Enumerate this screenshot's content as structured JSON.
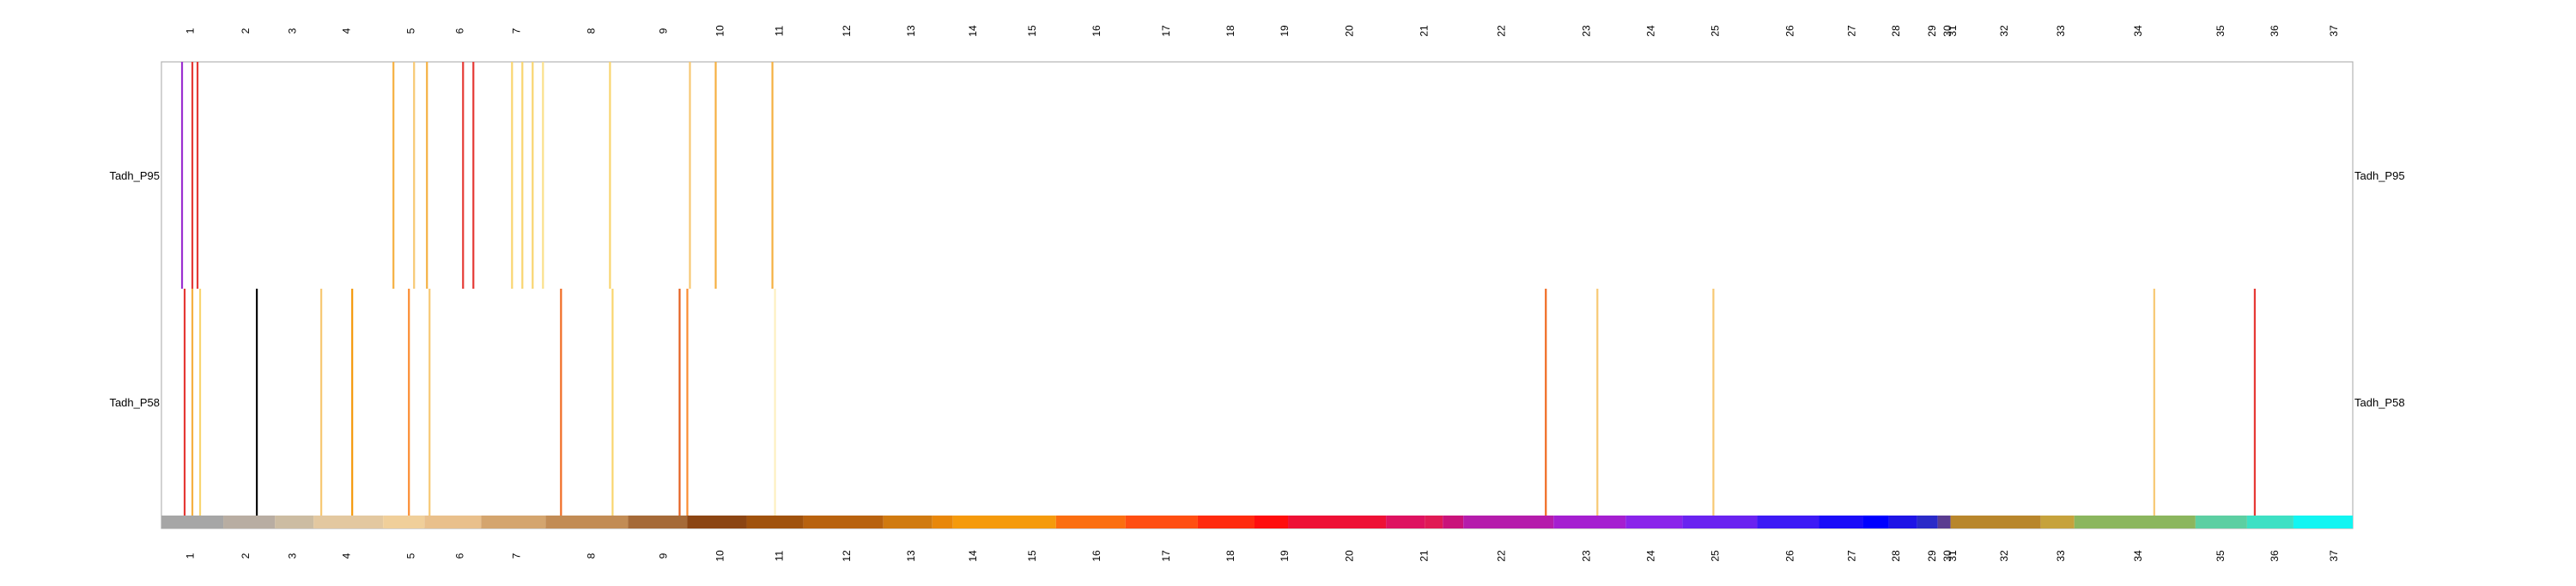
{
  "chart_data": {
    "type": "heatmap",
    "title": "",
    "xlabel": "",
    "ylabel": "",
    "segment_labels": [
      "1",
      "2",
      "3",
      "4",
      "5",
      "6",
      "7",
      "8",
      "9",
      "10",
      "11",
      "12",
      "13",
      "14",
      "15",
      "16",
      "17",
      "18",
      "19",
      "20",
      "21",
      "22",
      "23",
      "24",
      "25",
      "26",
      "27",
      "28",
      "29",
      "30",
      "31",
      "32",
      "33",
      "34",
      "35",
      "36",
      "37"
    ],
    "segment_centers": [
      1.15,
      3.3,
      5.1,
      7.2,
      9.7,
      11.6,
      13.8,
      16.7,
      19.5,
      21.7,
      24.0,
      26.6,
      29.1,
      31.5,
      33.8,
      36.3,
      39.0,
      41.5,
      43.6,
      46.1,
      49.0,
      52.0,
      55.3,
      57.8,
      60.3,
      63.2,
      65.6,
      67.3,
      68.7,
      69.3,
      69.5,
      71.5,
      73.7,
      76.7,
      79.9,
      82.0,
      84.3
    ],
    "segment_bar": [
      {
        "start": 0.0,
        "end": 2.4,
        "color": "#a6a6a6"
      },
      {
        "start": 2.4,
        "end": 4.4,
        "color": "#b8ada2"
      },
      {
        "start": 4.4,
        "end": 5.9,
        "color": "#ccbca2"
      },
      {
        "start": 5.9,
        "end": 8.6,
        "color": "#e3c8a0"
      },
      {
        "start": 8.6,
        "end": 10.2,
        "color": "#f0cf9a"
      },
      {
        "start": 10.2,
        "end": 12.4,
        "color": "#e9c08c"
      },
      {
        "start": 12.4,
        "end": 14.9,
        "color": "#d4a56e"
      },
      {
        "start": 14.9,
        "end": 18.1,
        "color": "#c28c55"
      },
      {
        "start": 18.1,
        "end": 20.4,
        "color": "#a56a38"
      },
      {
        "start": 20.4,
        "end": 22.7,
        "color": "#8b4513"
      },
      {
        "start": 22.7,
        "end": 24.9,
        "color": "#a0520d"
      },
      {
        "start": 24.9,
        "end": 28.0,
        "color": "#b8620f"
      },
      {
        "start": 28.0,
        "end": 29.9,
        "color": "#d07a10"
      },
      {
        "start": 29.9,
        "end": 30.7,
        "color": "#e8870a"
      },
      {
        "start": 30.7,
        "end": 34.7,
        "color": "#f59a0c"
      },
      {
        "start": 34.7,
        "end": 37.4,
        "color": "#fb6e10"
      },
      {
        "start": 37.4,
        "end": 40.2,
        "color": "#ff4e12"
      },
      {
        "start": 40.2,
        "end": 42.4,
        "color": "#ff2a0e"
      },
      {
        "start": 42.4,
        "end": 43.7,
        "color": "#ff0d0d"
      },
      {
        "start": 43.7,
        "end": 47.5,
        "color": "#ee1035"
      },
      {
        "start": 47.5,
        "end": 49.0,
        "color": "#de1260"
      },
      {
        "start": 49.0,
        "end": 49.7,
        "color": "#e01a55"
      },
      {
        "start": 49.7,
        "end": 50.5,
        "color": "#c9137a"
      },
      {
        "start": 50.5,
        "end": 54.0,
        "color": "#b51cab"
      },
      {
        "start": 54.0,
        "end": 56.8,
        "color": "#a51fd0"
      },
      {
        "start": 56.8,
        "end": 59.0,
        "color": "#8a24ea"
      },
      {
        "start": 59.0,
        "end": 61.9,
        "color": "#6a23f0"
      },
      {
        "start": 61.9,
        "end": 64.3,
        "color": "#3d1af5"
      },
      {
        "start": 64.3,
        "end": 66.0,
        "color": "#1a0cf8"
      },
      {
        "start": 66.0,
        "end": 67.0,
        "color": "#0000ff"
      },
      {
        "start": 67.0,
        "end": 68.1,
        "color": "#1e14e6"
      },
      {
        "start": 68.1,
        "end": 68.9,
        "color": "#2a2ac8"
      },
      {
        "start": 68.9,
        "end": 69.4,
        "color": "#5a3c90"
      },
      {
        "start": 69.4,
        "end": 72.9,
        "color": "#b8862c"
      },
      {
        "start": 72.9,
        "end": 74.2,
        "color": "#c6a23c"
      },
      {
        "start": 74.2,
        "end": 78.9,
        "color": "#8bb65e"
      },
      {
        "start": 78.9,
        "end": 80.9,
        "color": "#5ccfa2"
      },
      {
        "start": 80.9,
        "end": 82.7,
        "color": "#3ee0c4"
      },
      {
        "start": 82.7,
        "end": 85.0,
        "color": "#12f5f2"
      }
    ],
    "xlim": [
      0,
      85
    ],
    "rows": [
      {
        "name": "Tadh_P95",
        "marks": [
          {
            "x": 0.8,
            "color": "#9b30d0"
          },
          {
            "x": 1.2,
            "color": "#e53935"
          },
          {
            "x": 1.4,
            "color": "#e53935"
          },
          {
            "x": 9.0,
            "color": "#f5b041"
          },
          {
            "x": 9.8,
            "color": "#f7c873"
          },
          {
            "x": 10.3,
            "color": "#f5b041"
          },
          {
            "x": 11.7,
            "color": "#e53935"
          },
          {
            "x": 12.1,
            "color": "#e53935"
          },
          {
            "x": 13.6,
            "color": "#f9d56e"
          },
          {
            "x": 14.0,
            "color": "#f9d56e"
          },
          {
            "x": 14.4,
            "color": "#f9d56e"
          },
          {
            "x": 14.8,
            "color": "#fbe08a"
          },
          {
            "x": 17.4,
            "color": "#f9d56e"
          },
          {
            "x": 20.5,
            "color": "#f7c873"
          },
          {
            "x": 21.5,
            "color": "#f5b041"
          },
          {
            "x": 23.7,
            "color": "#f5b041"
          }
        ]
      },
      {
        "name": "Tadh_P58",
        "marks": [
          {
            "x": 0.9,
            "color": "#e53935"
          },
          {
            "x": 1.2,
            "color": "#f5b041"
          },
          {
            "x": 1.5,
            "color": "#f9d56e"
          },
          {
            "x": 3.7,
            "color": "#000000"
          },
          {
            "x": 6.2,
            "color": "#f7c873"
          },
          {
            "x": 7.4,
            "color": "#f59a0c"
          },
          {
            "x": 9.6,
            "color": "#fb8c30"
          },
          {
            "x": 10.4,
            "color": "#f7c873"
          },
          {
            "x": 15.5,
            "color": "#f06a20"
          },
          {
            "x": 17.5,
            "color": "#f9d56e"
          },
          {
            "x": 20.1,
            "color": "#e56020"
          },
          {
            "x": 20.4,
            "color": "#fb8c30"
          },
          {
            "x": 23.8,
            "color": "#fdf0c0"
          },
          {
            "x": 53.7,
            "color": "#f06a20"
          },
          {
            "x": 55.7,
            "color": "#f7c873"
          },
          {
            "x": 60.2,
            "color": "#f7c873"
          },
          {
            "x": 77.3,
            "color": "#f7c873"
          },
          {
            "x": 81.2,
            "color": "#e53935"
          }
        ]
      }
    ],
    "grid": false,
    "legend": "none"
  }
}
